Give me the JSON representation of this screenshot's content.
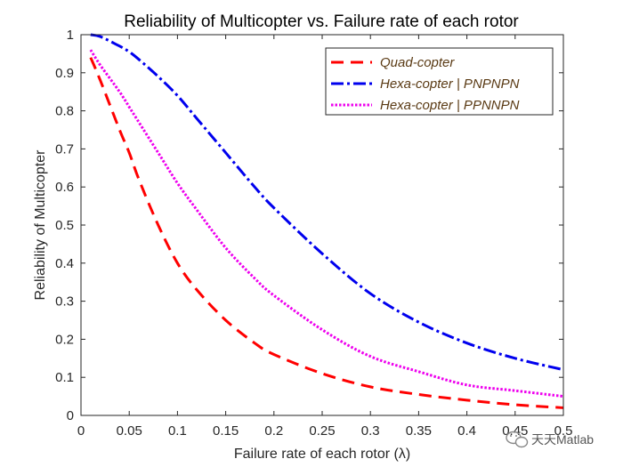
{
  "chart_data": {
    "type": "line",
    "title": "Reliability of Multicopter vs. Failure rate of each rotor",
    "xlabel": "Failure rate of each rotor (λ)",
    "ylabel": "Reliability of Multicopter",
    "xlim": [
      0,
      0.5
    ],
    "ylim": [
      0,
      1
    ],
    "xticks": [
      "0",
      "0.05",
      "0.1",
      "0.15",
      "0.2",
      "0.25",
      "0.3",
      "0.35",
      "0.4",
      "0.45",
      "0.5"
    ],
    "yticks": [
      "0",
      "0.1",
      "0.2",
      "0.3",
      "0.4",
      "0.5",
      "0.6",
      "0.7",
      "0.8",
      "0.9",
      "1"
    ],
    "grid": false,
    "legend_position": "top-right",
    "x": [
      0.01,
      0.02,
      0.04,
      0.05,
      0.06,
      0.08,
      0.1,
      0.12,
      0.15,
      0.18,
      0.2,
      0.25,
      0.3,
      0.35,
      0.4,
      0.45,
      0.5
    ],
    "series": [
      {
        "name": "Quad-copter",
        "color": "#ff0000",
        "style": "dashed",
        "values": [
          0.94,
          0.88,
          0.75,
          0.69,
          0.62,
          0.5,
          0.4,
          0.33,
          0.25,
          0.19,
          0.16,
          0.11,
          0.075,
          0.055,
          0.04,
          0.028,
          0.02
        ]
      },
      {
        "name": "Hexa-copter | PNPNPN",
        "color": "#0000ee",
        "style": "dashdot",
        "values": [
          1.0,
          0.995,
          0.97,
          0.955,
          0.935,
          0.89,
          0.84,
          0.78,
          0.69,
          0.6,
          0.545,
          0.425,
          0.32,
          0.245,
          0.19,
          0.15,
          0.12
        ]
      },
      {
        "name": "Hexa-copter | PPNNPN",
        "color": "#ee00ee",
        "style": "dotted",
        "values": [
          0.96,
          0.92,
          0.85,
          0.81,
          0.77,
          0.69,
          0.61,
          0.54,
          0.44,
          0.36,
          0.315,
          0.225,
          0.155,
          0.115,
          0.08,
          0.065,
          0.05
        ]
      }
    ]
  },
  "watermark": {
    "text": "天天Matlab",
    "icon": "wechat-icon"
  }
}
